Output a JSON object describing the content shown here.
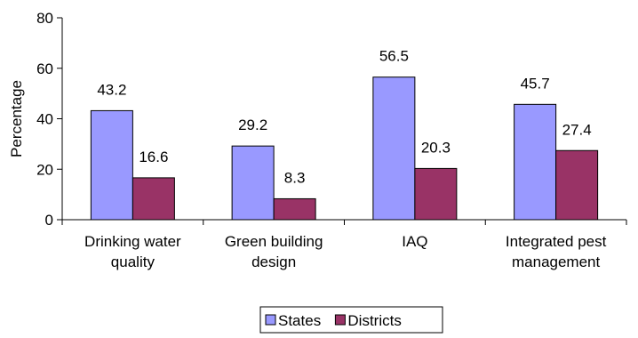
{
  "chart_data": {
    "type": "bar",
    "categories": [
      [
        "Drinking water",
        "quality"
      ],
      [
        "Green building",
        "design"
      ],
      [
        "IAQ"
      ],
      [
        "Integrated pest",
        "management"
      ]
    ],
    "series": [
      {
        "name": "States",
        "values": [
          43.2,
          29.2,
          56.5,
          45.7
        ],
        "color": "#9999ff"
      },
      {
        "name": "Districts",
        "values": [
          16.6,
          8.3,
          20.3,
          27.4
        ],
        "color": "#993366"
      }
    ],
    "ylabel": "Percentage",
    "xlabel": "",
    "ylim": [
      0,
      80
    ],
    "yticks": [
      0,
      20,
      40,
      60,
      80
    ],
    "grid": false,
    "legend_position": "bottom",
    "bar_border_color": "#000000"
  }
}
